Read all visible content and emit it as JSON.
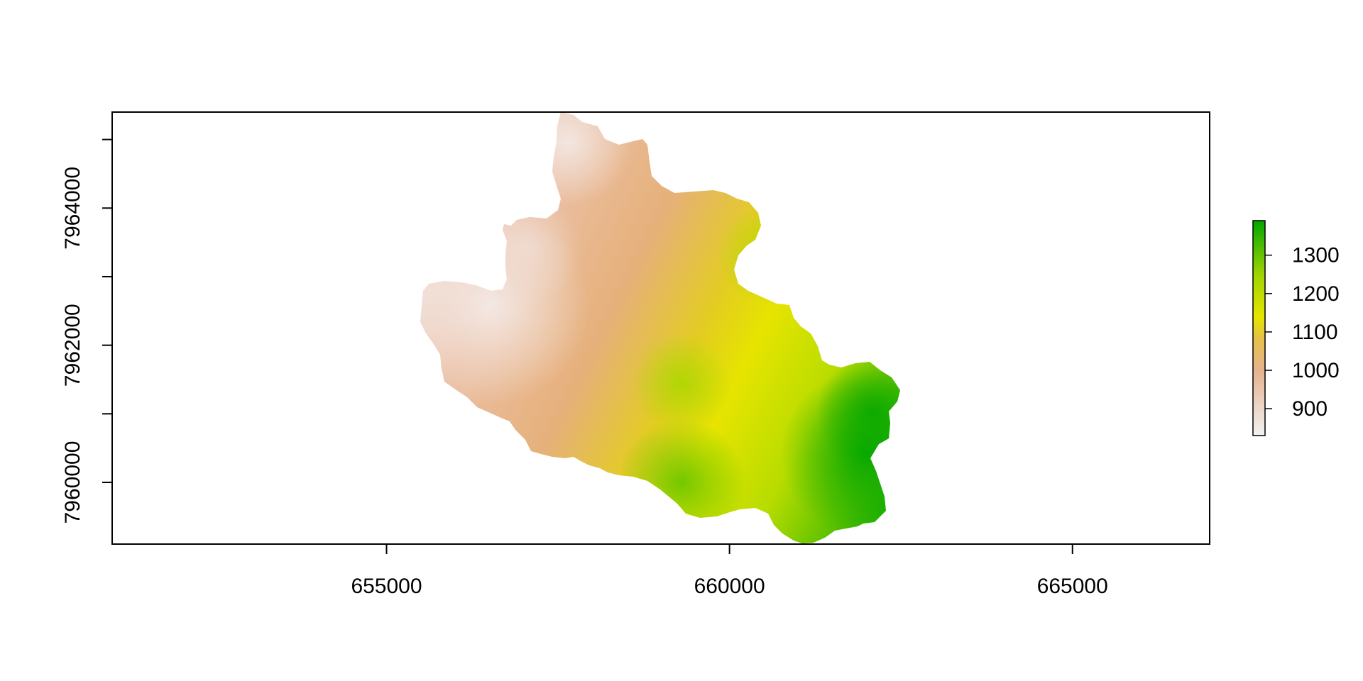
{
  "map": {
    "type": "raster",
    "x_axis": {
      "range": [
        651000,
        667000
      ],
      "ticks": [
        655000,
        660000,
        665000
      ],
      "tick_labels": [
        "655000",
        "660000",
        "665000"
      ]
    },
    "y_axis": {
      "range": [
        7959100,
        7965400
      ],
      "ticks": [
        7960000,
        7962000,
        7964000
      ],
      "tick_labels": [
        "7960000",
        "7962000",
        "7964000"
      ],
      "minor_ticks": [
        7961000,
        7963000,
        7965000
      ]
    },
    "legend": {
      "placement": "right",
      "range": [
        830,
        1390
      ],
      "ticks": [
        900,
        1000,
        1100,
        1200,
        1300
      ],
      "tick_labels": [
        "900",
        "1000",
        "1100",
        "1200",
        "1300"
      ],
      "colors": [
        "#F2F2F2",
        "#E6B38F",
        "#E6C04A",
        "#E6E600",
        "#9FD400",
        "#00A600"
      ]
    },
    "colors": {
      "low": "#F2F2F2",
      "mid_low": "#E8B69A",
      "mid": "#E6E600",
      "high": "#00A600"
    }
  }
}
